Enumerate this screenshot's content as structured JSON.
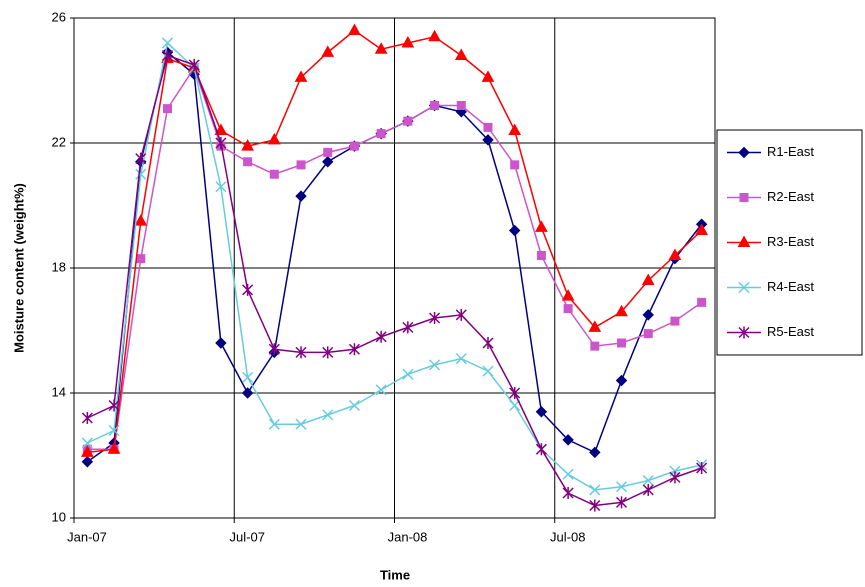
{
  "chart_data": {
    "type": "line",
    "xlabel": "Time",
    "ylabel": "Moisture content (weight%)",
    "x": [
      "2007-01",
      "2007-02",
      "2007-03",
      "2007-04",
      "2007-05",
      "2007-06",
      "2007-07",
      "2007-08",
      "2007-09",
      "2007-10",
      "2007-11",
      "2007-12",
      "2008-01",
      "2008-02",
      "2008-03",
      "2008-04",
      "2008-05",
      "2008-06",
      "2008-07",
      "2008-08",
      "2008-09",
      "2008-10",
      "2008-11",
      "2008-12"
    ],
    "xlim": [
      "2007-01",
      "2008-12"
    ],
    "xticks": [
      {
        "value": "2007-01",
        "label": "Jan-07"
      },
      {
        "value": "2007-07",
        "label": "Jul-07"
      },
      {
        "value": "2008-01",
        "label": "Jan-08"
      },
      {
        "value": "2008-07",
        "label": "Jul-08"
      }
    ],
    "ylim": [
      10,
      26
    ],
    "yticks": [
      10,
      14,
      18,
      22,
      26
    ],
    "grid": true,
    "legend": "right",
    "series": [
      {
        "name": "R1-East",
        "color": "#000080",
        "marker": "diamond",
        "values": [
          11.8,
          12.4,
          21.4,
          24.9,
          24.2,
          15.6,
          14.0,
          15.3,
          20.3,
          21.4,
          21.9,
          22.3,
          22.7,
          23.2,
          23.0,
          22.1,
          19.2,
          13.4,
          12.5,
          12.1,
          14.4,
          16.5,
          18.3,
          19.4
        ]
      },
      {
        "name": "R2-East",
        "color": "#CC55CC",
        "marker": "square",
        "values": [
          12.2,
          12.2,
          18.3,
          23.1,
          24.4,
          21.9,
          21.4,
          21.0,
          21.3,
          21.7,
          21.9,
          22.3,
          22.7,
          23.2,
          23.2,
          22.5,
          21.3,
          18.4,
          16.7,
          15.5,
          15.6,
          15.9,
          16.3,
          16.9
        ]
      },
      {
        "name": "R3-East",
        "color": "#FF0000",
        "marker": "triangle",
        "values": [
          12.1,
          12.2,
          19.5,
          24.7,
          24.4,
          22.4,
          21.9,
          22.1,
          24.1,
          24.9,
          25.6,
          25.0,
          25.2,
          25.4,
          24.8,
          24.1,
          22.4,
          19.3,
          17.1,
          16.1,
          16.6,
          17.6,
          18.4,
          19.2
        ]
      },
      {
        "name": "R4-East",
        "color": "#66CCDD",
        "marker": "x",
        "values": [
          12.4,
          12.8,
          21.0,
          25.2,
          24.4,
          20.6,
          14.5,
          13.0,
          13.0,
          13.3,
          13.6,
          14.1,
          14.6,
          14.9,
          15.1,
          14.7,
          13.6,
          12.2,
          11.4,
          10.9,
          11.0,
          11.2,
          11.5,
          11.7
        ]
      },
      {
        "name": "R5-East",
        "color": "#800080",
        "marker": "star",
        "values": [
          13.2,
          13.6,
          21.5,
          24.8,
          24.5,
          22.0,
          17.3,
          15.4,
          15.3,
          15.3,
          15.4,
          15.8,
          16.1,
          16.4,
          16.5,
          15.6,
          14.0,
          12.2,
          10.8,
          10.4,
          10.5,
          10.9,
          11.3,
          11.6
        ]
      }
    ]
  }
}
